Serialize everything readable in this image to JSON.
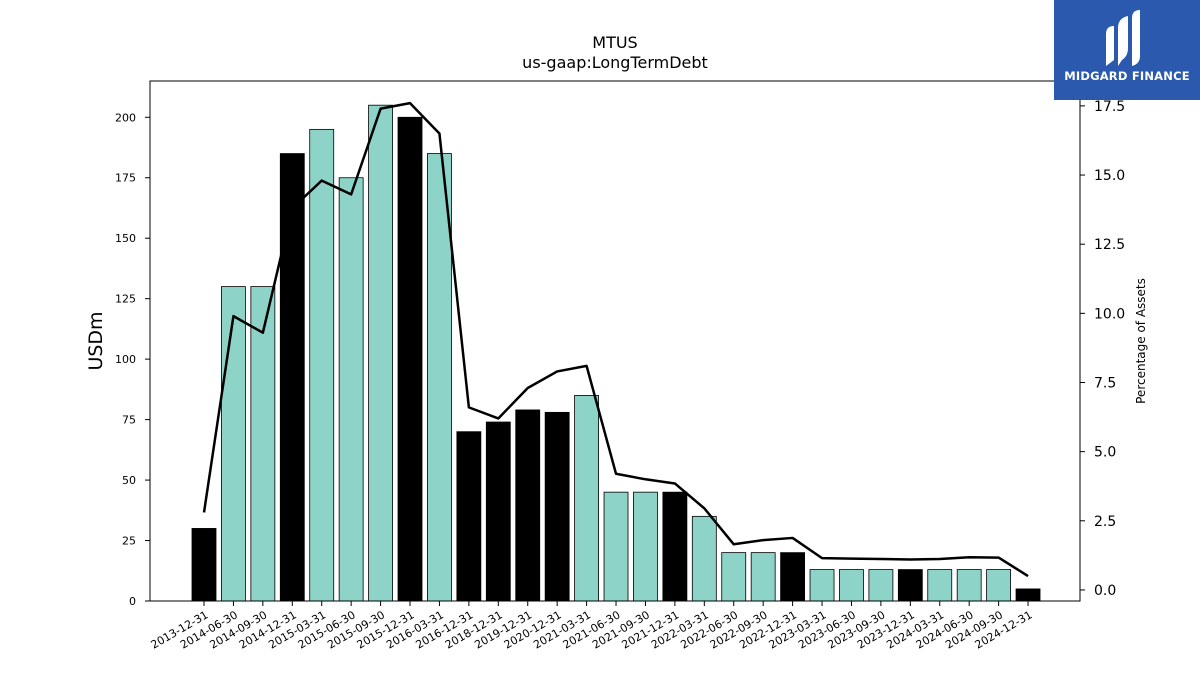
{
  "chart_data": {
    "type": "bar",
    "title": "MTUS",
    "subtitle": "us-gaap:LongTermDebt",
    "ylabel": "USDm",
    "y2label": "Percentage of Assets",
    "ylim": [
      0,
      215
    ],
    "y2lim": [
      -0.4,
      18.4
    ],
    "yticks": [
      0,
      25,
      50,
      75,
      100,
      125,
      150,
      175,
      200
    ],
    "y2ticks": [
      "0.0",
      "2.5",
      "5.0",
      "7.5",
      "10.0",
      "12.5",
      "15.0",
      "17.5"
    ],
    "categories": [
      "2013-12-31",
      "2014-06-30",
      "2014-09-30",
      "2014-12-31",
      "2015-03-31",
      "2015-06-30",
      "2015-09-30",
      "2015-12-31",
      "2016-03-31",
      "2016-12-31",
      "2018-12-31",
      "2019-12-31",
      "2020-12-31",
      "2021-03-31",
      "2021-06-30",
      "2021-09-30",
      "2021-12-31",
      "2022-03-31",
      "2022-06-30",
      "2022-09-30",
      "2022-12-31",
      "2023-03-31",
      "2023-06-30",
      "2023-09-30",
      "2023-12-31",
      "2024-03-31",
      "2024-06-30",
      "2024-09-30",
      "2024-12-31"
    ],
    "series": [
      {
        "kind": "bar",
        "values": [
          30,
          130,
          130,
          185,
          195,
          175,
          205,
          200,
          185,
          70,
          74,
          79,
          78,
          85,
          45,
          45,
          45,
          35,
          20,
          20,
          20,
          13,
          13,
          13,
          13,
          13,
          13,
          13,
          5
        ],
        "annual": [
          true,
          false,
          false,
          true,
          false,
          false,
          false,
          true,
          false,
          true,
          true,
          true,
          true,
          false,
          false,
          false,
          true,
          false,
          false,
          false,
          true,
          false,
          false,
          false,
          true,
          false,
          false,
          false,
          true
        ]
      },
      {
        "kind": "line",
        "axis": "right",
        "values": [
          2.8,
          9.9,
          9.3,
          13.8,
          14.8,
          14.3,
          17.4,
          17.6,
          16.5,
          6.6,
          6.2,
          7.3,
          7.9,
          8.1,
          4.2,
          4.0,
          3.85,
          2.95,
          1.65,
          1.8,
          1.88,
          1.15,
          1.13,
          1.12,
          1.1,
          1.12,
          1.18,
          1.17,
          0.5
        ]
      }
    ],
    "colors": {
      "annual_bar": "#000000",
      "interim_bar": "#8dd3c7",
      "line": "#000000"
    },
    "grid": false
  },
  "logo": {
    "text": "MIDGARD FINANCE",
    "color": "#2a59ad"
  }
}
